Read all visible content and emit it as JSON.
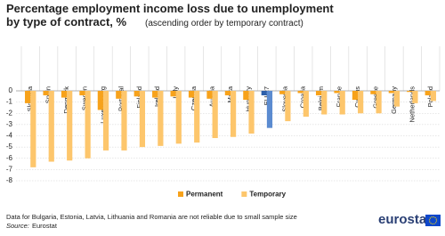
{
  "chart_data": {
    "type": "bar",
    "title": [
      "Percentage employment income loss due to unemployment",
      "by type of contract, %"
    ],
    "subtitle": "(ascending order by temporary contract)",
    "categories": [
      "Slovakia",
      "Spain",
      "Denmark",
      "Sweden",
      "Luxembourg",
      "Portugal",
      "Finland",
      "Ireland",
      "Italy",
      "Czechia",
      "Austria",
      "Malta",
      "Hungary",
      "EU-27",
      "Slovenia",
      "Croatia",
      "Belgium",
      "France",
      "Cyprus",
      "Greece",
      "Germany",
      "Netherlands",
      "Poland"
    ],
    "highlight": "EU-27",
    "series": [
      {
        "name": "Permanent",
        "color": "#f7a21b",
        "highlight_color": "#2d5faa",
        "values": [
          -1.1,
          -0.4,
          -0.6,
          -0.4,
          -1.7,
          -0.7,
          -0.5,
          -0.6,
          -0.5,
          -0.6,
          -0.7,
          -0.4,
          -0.8,
          -0.4,
          -0.3,
          -0.2,
          -0.4,
          -0.2,
          -0.8,
          -0.3,
          -0.2,
          -0.1,
          -0.4
        ]
      },
      {
        "name": "Temporary",
        "color": "#fdc66c",
        "highlight_color": "#5b8bd0",
        "values": [
          -6.8,
          -6.3,
          -6.2,
          -6.0,
          -5.3,
          -5.3,
          -5.0,
          -4.9,
          -4.7,
          -4.6,
          -4.2,
          -4.1,
          -3.8,
          -3.3,
          -2.7,
          -2.3,
          -2.1,
          -2.1,
          -2.0,
          -2.0,
          -1.4,
          -1.1,
          -0.9
        ]
      }
    ],
    "ylim": [
      -8,
      0
    ],
    "yticks": [
      0,
      -1,
      -2,
      -3,
      -4,
      -5,
      -6,
      -7,
      -8
    ],
    "grid": true,
    "legend": "bottom",
    "note": "Data for Bulgaria, Estonia, Latvia, Lithuania and Romania are not reliable due to small sample size",
    "source_label": "Source:",
    "source": "Eurostat",
    "logo": "eurostat"
  }
}
